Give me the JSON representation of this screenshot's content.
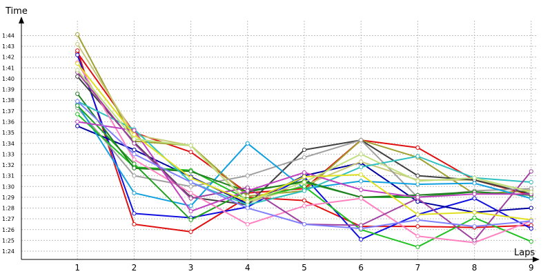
{
  "chart_data": {
    "type": "line",
    "title": "",
    "ylabel": "Time",
    "xlabel": "Laps",
    "x": [
      1,
      2,
      3,
      4,
      5,
      6,
      7,
      8,
      9
    ],
    "x_tick_labels": [
      "1",
      "2",
      "3",
      "4",
      "5",
      "6",
      "7",
      "8",
      "9"
    ],
    "y_tick_labels": [
      "1:24",
      "1:25",
      "1:26",
      "1:27",
      "1:28",
      "1:29",
      "1:30",
      "1:31",
      "1:32",
      "1:33",
      "1:34",
      "1:35",
      "1:36",
      "1:37",
      "1:38",
      "1:39",
      "1:40",
      "1:41",
      "1:42",
      "1:43",
      "1:44"
    ],
    "ylim": [
      83.3,
      105.5
    ],
    "xlim": [
      0.05,
      9.2
    ],
    "grid": true,
    "legend": "none",
    "series": [
      {
        "color": "#e01010",
        "values": [
          102.4,
          95.0,
          93.2,
          89.4,
          89.8,
          94.3,
          93.6,
          90.6,
          89.2
        ]
      },
      {
        "color": "#e01010",
        "values": [
          102.6,
          86.5,
          85.8,
          89.0,
          88.7,
          86.3,
          86.3,
          86.2,
          86.4
        ]
      },
      {
        "color": "#1010e0",
        "values": [
          102.2,
          87.5,
          87.1,
          88.1,
          90.9,
          85.1,
          87.4,
          88.9,
          86.1
        ]
      },
      {
        "color": "#0000a0",
        "values": [
          95.6,
          93.4,
          90.9,
          88.4,
          91.0,
          92.2,
          88.6,
          87.6,
          88.0
        ]
      },
      {
        "color": "#a0a030",
        "values": [
          104.1,
          94.2,
          93.8,
          89.1,
          89.6,
          94.3,
          92.7,
          89.3,
          89.6
        ]
      },
      {
        "color": "#c8c878",
        "values": [
          103.2,
          94.8,
          93.8,
          88.5,
          90.1,
          92.3,
          90.6,
          90.6,
          89.6
        ]
      },
      {
        "color": "#404040",
        "values": [
          100.2,
          94.1,
          89.0,
          88.3,
          93.4,
          94.3,
          91.0,
          90.6,
          89.3
        ]
      },
      {
        "color": "#a0a0a0",
        "values": [
          97.3,
          91.0,
          90.0,
          91.0,
          92.7,
          94.3,
          89.0,
          89.6,
          89.8
        ]
      },
      {
        "color": "#10a0e0",
        "values": [
          97.6,
          89.4,
          88.2,
          94.0,
          89.8,
          90.5,
          90.2,
          90.3,
          88.9
        ]
      },
      {
        "color": "#20a020",
        "values": [
          97.5,
          92.1,
          86.9,
          89.6,
          90.4,
          89.0,
          89.0,
          89.5,
          89.2
        ]
      },
      {
        "color": "#20c020",
        "values": [
          96.7,
          91.8,
          91.5,
          88.8,
          90.0,
          86.0,
          84.4,
          87.1,
          84.9
        ]
      },
      {
        "color": "#208020",
        "values": [
          98.6,
          91.7,
          91.4,
          89.5,
          90.5,
          89.0,
          89.2,
          89.5,
          89.2
        ]
      },
      {
        "color": "#30c0c0",
        "values": [
          97.9,
          95.3,
          90.4,
          88.3,
          89.6,
          91.8,
          92.8,
          90.8,
          90.4
        ]
      },
      {
        "color": "#ff80c0",
        "values": [
          101.5,
          92.5,
          89.4,
          86.5,
          88.2,
          88.9,
          85.4,
          84.8,
          86.8
        ]
      },
      {
        "color": "#a040a0",
        "values": [
          100.6,
          94.0,
          88.9,
          89.9,
          86.5,
          86.4,
          88.9,
          85.0,
          91.4
        ]
      },
      {
        "color": "#c040c0",
        "values": [
          96.0,
          95.2,
          87.7,
          89.6,
          91.3,
          89.7,
          89.0,
          89.3,
          89.3
        ]
      },
      {
        "color": "#e0e020",
        "values": [
          101.4,
          94.8,
          90.8,
          88.6,
          90.9,
          91.1,
          87.4,
          87.6,
          86.9
        ]
      },
      {
        "color": "#c0e080",
        "values": [
          100.8,
          94.4,
          93.8,
          88.6,
          90.4,
          93.0,
          90.5,
          90.8,
          89.5
        ]
      },
      {
        "color": "#8080ff",
        "values": [
          97.9,
          93.0,
          90.4,
          88.0,
          86.5,
          86.1,
          86.9,
          86.3,
          86.8
        ]
      }
    ]
  }
}
